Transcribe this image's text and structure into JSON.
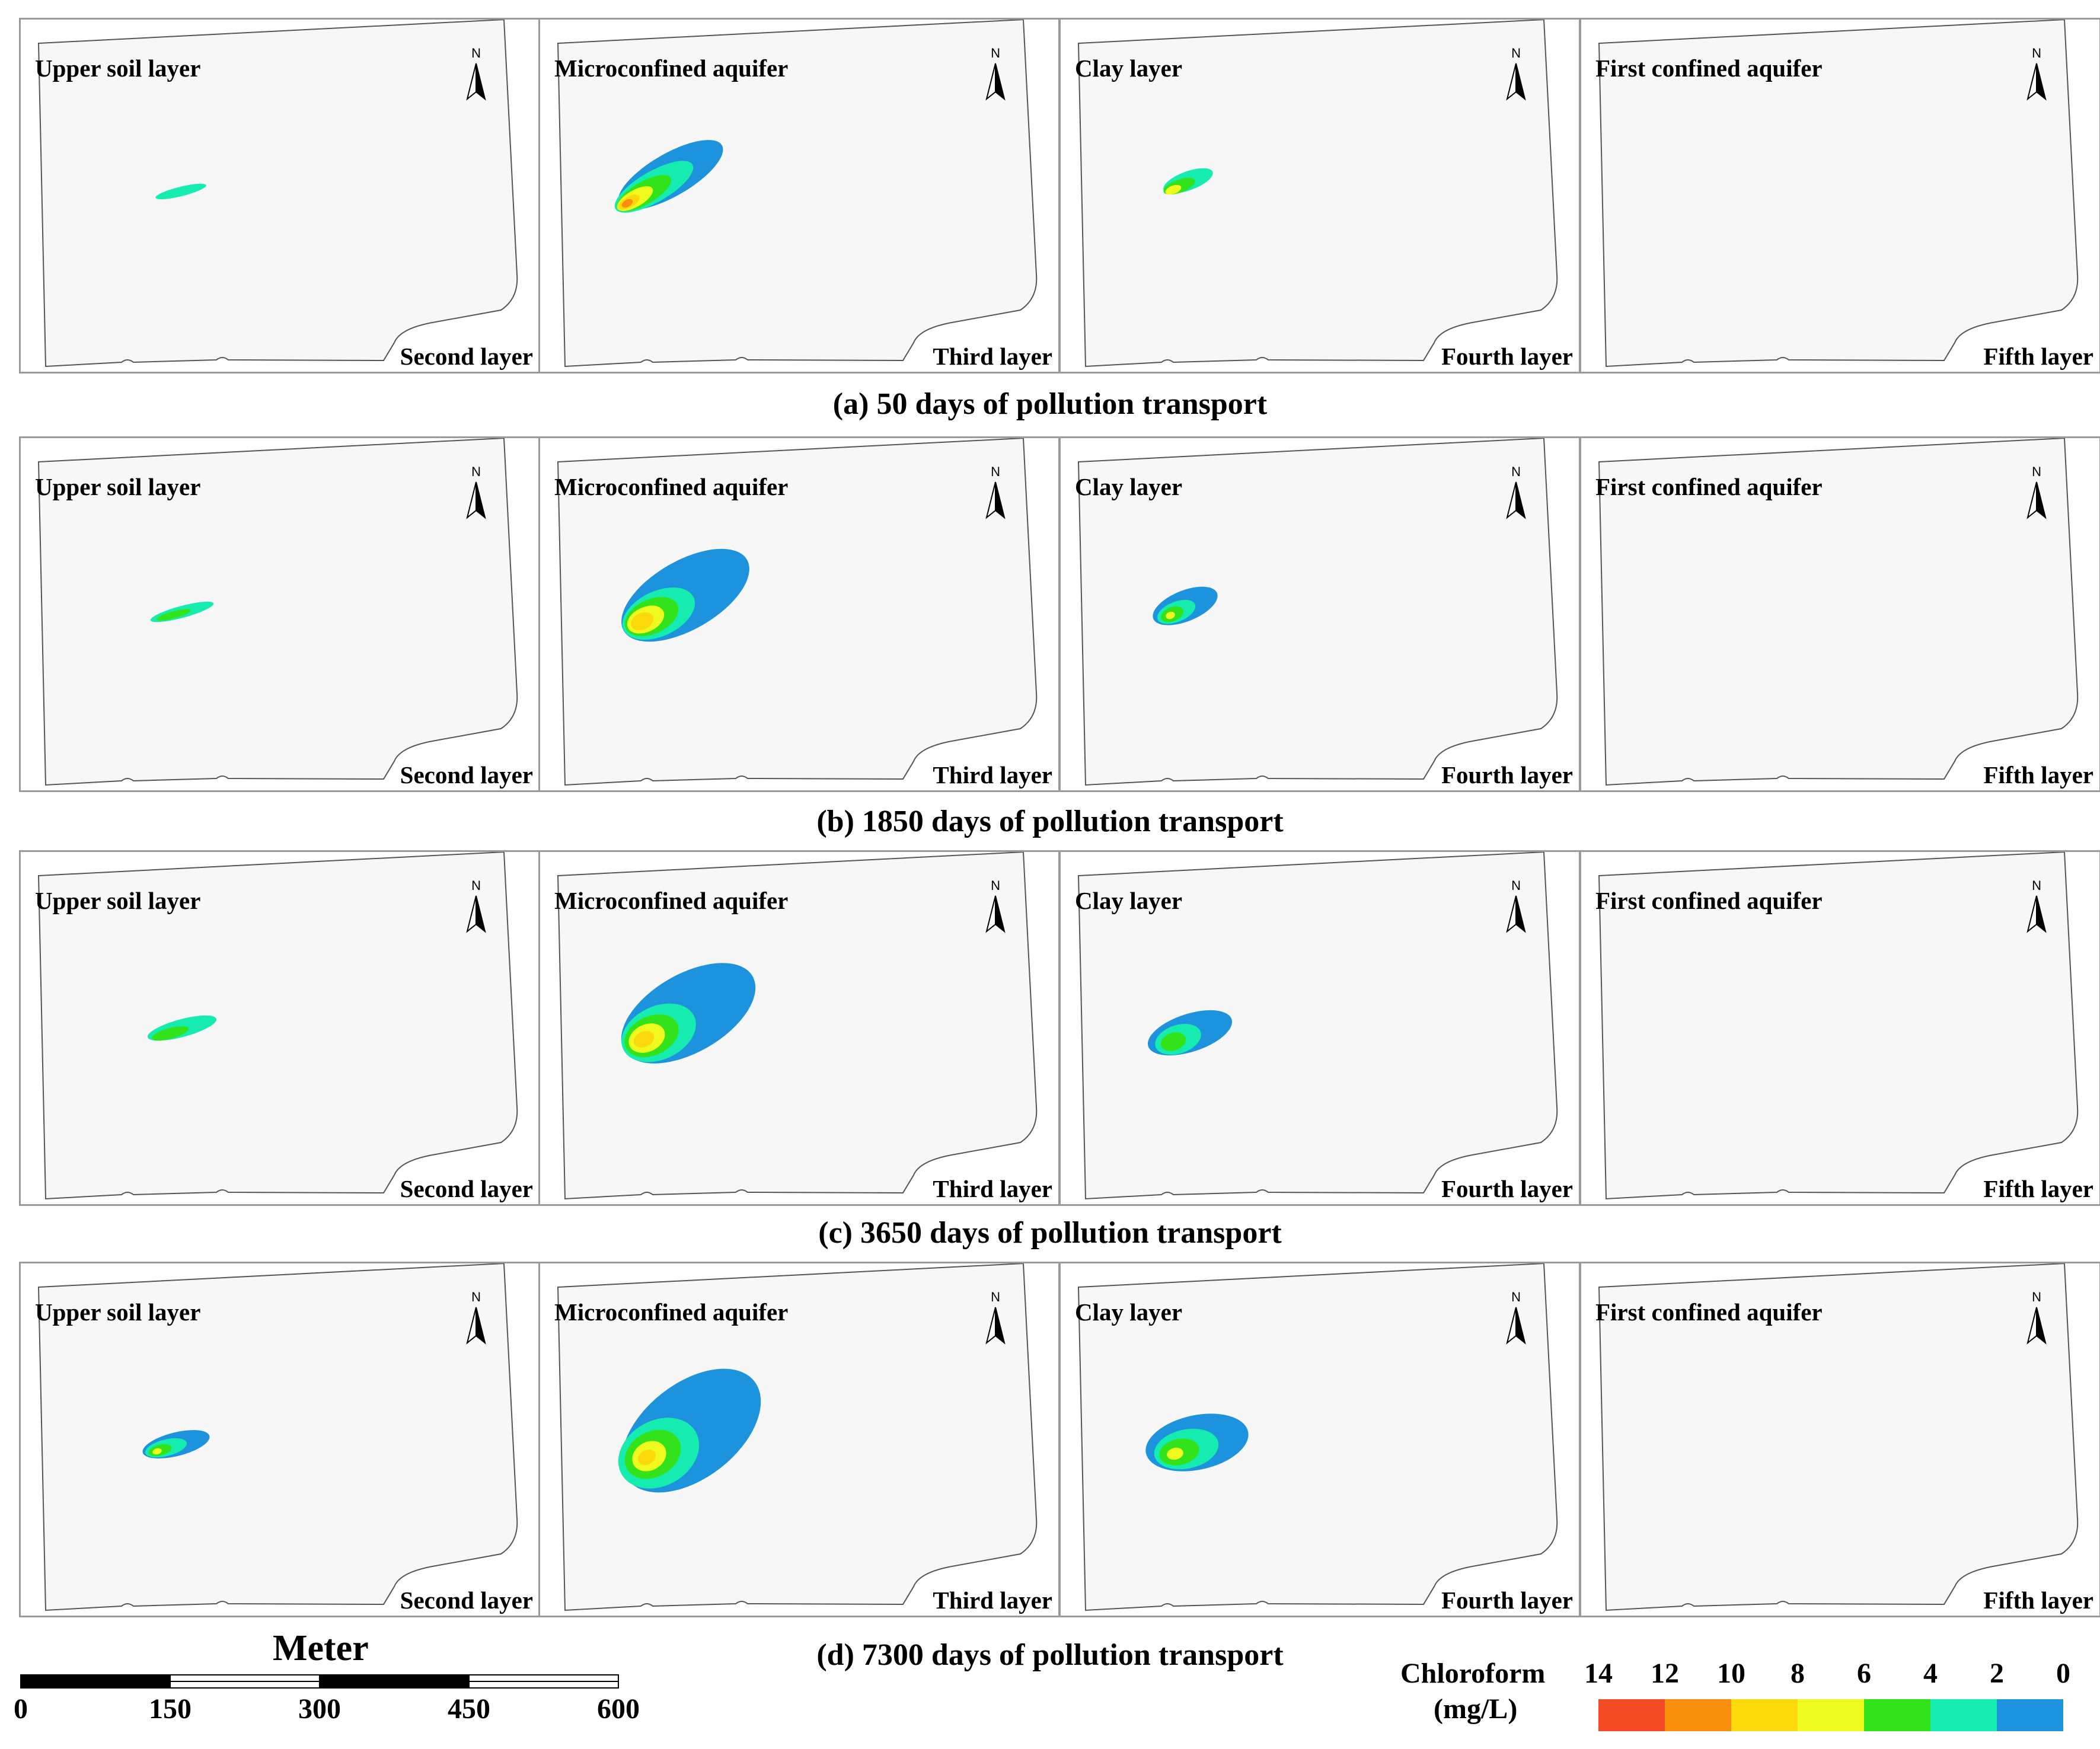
{
  "layer_names": [
    "Upper soil layer",
    "Microconfined aquifer",
    "Clay layer",
    "First confined aquifer"
  ],
  "layer_numbers": [
    "Second layer",
    "Third layer",
    "Fourth layer",
    "Fifth layer"
  ],
  "north_label": "N",
  "captions": [
    {
      "letter": "(a)",
      "text": "50 days of pollution transport"
    },
    {
      "letter": "(b)",
      "text": "1850 days of pollution transport"
    },
    {
      "letter": "(c)",
      "text": "3650 days of pollution transport"
    },
    {
      "letter": "(d)",
      "text": "7300 days of pollution transport"
    }
  ],
  "scale_bar": {
    "unit": "Meter",
    "ticks": [
      "0",
      "150",
      "300",
      "450",
      "600"
    ]
  },
  "legend": {
    "title_line1": "Chloroform",
    "title_line2": "(mg/L)",
    "labels": [
      "14",
      "12",
      "10",
      "8",
      "6",
      "4",
      "2",
      "0"
    ],
    "colors": [
      "#f24a25",
      "#fa8f0d",
      "#fbd90a",
      "#eefa1e",
      "#32e21a",
      "#17ecb0",
      "#1d92dd"
    ]
  }
}
